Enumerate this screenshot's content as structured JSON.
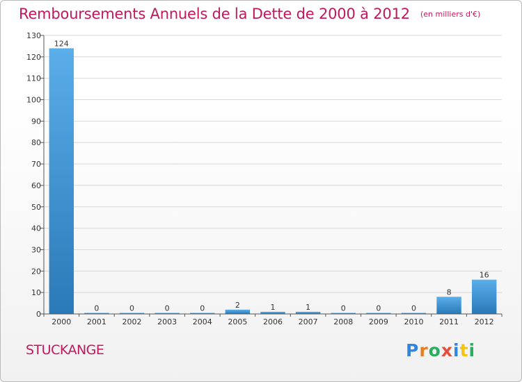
{
  "header": {
    "title": "Remboursements Annuels de la Dette de 2000 à 2012",
    "subtitle": "(en milliers d'€)"
  },
  "footer": {
    "commune": "STUCKANGE",
    "logo_letters": [
      "P",
      "r",
      "o",
      "x",
      "i",
      "t",
      "i"
    ],
    "logo_colors": [
      "#2e86de",
      "#e67e22",
      "#27ae60",
      "#e74c3c",
      "#2e86de",
      "#f1c40f",
      "#27ae60"
    ]
  },
  "colors": {
    "bar_top": "#5aaeea",
    "bar_bottom": "#2a79b8",
    "grid": "#d8d8d8",
    "axis": "#555555",
    "text": "#333333",
    "title": "#c2185b"
  },
  "chart_data": {
    "type": "bar",
    "title": "Remboursements Annuels de la Dette de 2000 à 2012",
    "subtitle": "(en milliers d'€)",
    "xlabel": "",
    "ylabel": "",
    "categories": [
      "2000",
      "2001",
      "2002",
      "2003",
      "2004",
      "2005",
      "2006",
      "2007",
      "2008",
      "2009",
      "2010",
      "2011",
      "2012"
    ],
    "values": [
      124,
      0,
      0,
      0,
      0,
      2,
      1,
      1,
      0,
      0,
      0,
      8,
      16
    ],
    "data_labels": [
      "124",
      "0",
      "0",
      "0",
      "0",
      "2",
      "1",
      "1",
      "0",
      "0",
      "0",
      "8",
      "16"
    ],
    "ylim": [
      0,
      130
    ],
    "yticks": [
      0,
      10,
      20,
      30,
      40,
      50,
      60,
      70,
      80,
      90,
      100,
      110,
      120,
      130
    ],
    "grid": true,
    "legend": "none"
  }
}
